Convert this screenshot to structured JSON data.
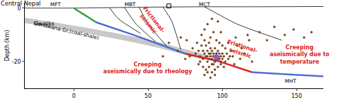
{
  "chart_data": {
    "type": "scatter",
    "title": "Central Nepal",
    "y_label": "Depth (km)",
    "xlim": [
      -33,
      168
    ],
    "ylim": [
      -30,
      2
    ],
    "xticks": [
      0,
      50,
      100,
      150
    ],
    "yticks": [
      0,
      -20
    ],
    "grid": false,
    "series": [
      {
        "type": "line",
        "line_style": "band",
        "color": "#c8c8c8",
        "x": [
          -33,
          0,
          30,
          60,
          88
        ],
        "values": [
          -4.6,
          -7.6,
          -10.6,
          -14.2,
          -18.4
        ]
      },
      {
        "type": "line",
        "line_style": "thin",
        "color": "#000000",
        "x": [
          -33,
          0,
          30,
          60,
          90,
          120,
          168
        ],
        "values": [
          0,
          0,
          0.2,
          0.4,
          0.5,
          0.5,
          0.6
        ]
      },
      {
        "type": "line",
        "line_style": "thin",
        "color": "#000000",
        "x": [
          24,
          30,
          45
        ],
        "values": [
          0.2,
          -4,
          -9.5
        ]
      },
      {
        "type": "line",
        "line_style": "thin",
        "color": "#000000",
        "x": [
          34,
          42,
          55
        ],
        "values": [
          0.3,
          -6,
          -12.5
        ]
      },
      {
        "type": "line",
        "line_style": "thin",
        "color": "#000000",
        "x": [
          44,
          50,
          63
        ],
        "values": [
          0.3,
          -6,
          -14.5
        ]
      },
      {
        "type": "line",
        "line_style": "thin",
        "color": "#000000",
        "x": [
          88,
          110,
          140
        ],
        "values": [
          0.5,
          -6,
          -12
        ]
      },
      {
        "type": "line",
        "line_style": "thin",
        "color": "#000000",
        "x": [
          60,
          66,
          72
        ],
        "values": [
          0.4,
          -5,
          -15.5
        ]
      },
      {
        "type": "line",
        "line_style": "thick",
        "color": "#2e9e3e",
        "x": [
          0,
          5,
          10,
          15
        ],
        "values": [
          0,
          -1.8,
          -3.5,
          -5.3
        ]
      },
      {
        "type": "line",
        "line_style": "thick",
        "color": "#4a6fd0",
        "x": [
          15,
          40,
          60,
          75
        ],
        "values": [
          -5.3,
          -10,
          -14,
          -17
        ]
      },
      {
        "type": "line",
        "line_style": "thick",
        "color": "#e02020",
        "x": [
          75,
          97
        ],
        "values": [
          -17,
          -19.8
        ]
      },
      {
        "type": "line",
        "line_style": "thick",
        "color": "#e02020",
        "x": [
          97,
          120
        ],
        "values": [
          -19.8,
          -24
        ]
      },
      {
        "type": "line",
        "line_style": "thick",
        "color": "#4a6fd0",
        "x": [
          120,
          145,
          168
        ],
        "values": [
          -24,
          -24.8,
          -25.5
        ]
      },
      {
        "type": "scatter",
        "marker": "circle",
        "color": "#8b4513",
        "x": [
          82,
          84,
          85,
          86,
          87,
          88,
          88,
          89,
          90,
          90,
          91,
          91,
          92,
          92,
          93,
          93,
          94,
          94,
          95,
          95,
          95,
          96,
          96,
          97,
          97,
          98,
          98,
          99,
          99,
          100,
          100,
          101,
          102,
          103,
          104,
          105,
          86,
          88,
          90,
          92,
          94,
          96,
          98,
          100,
          84,
          87,
          89,
          91,
          93,
          95,
          97,
          99,
          101,
          83,
          85,
          80,
          78,
          76,
          106,
          108,
          110,
          112,
          115,
          118,
          120,
          95,
          92,
          90,
          88,
          93,
          97,
          99,
          87,
          89,
          91,
          93,
          102,
          104,
          107,
          109,
          113,
          117,
          75,
          72,
          70,
          64,
          60,
          125,
          130,
          135,
          142,
          148,
          155,
          160,
          96,
          94,
          92,
          90
        ],
        "values": [
          -17,
          -16,
          -18,
          -14,
          -19,
          -17,
          -12,
          -18,
          -16,
          -20,
          -17,
          -13,
          -18,
          -15,
          -19,
          -16,
          -17,
          -21,
          -18,
          -15,
          -20,
          -17,
          -19,
          -18,
          -16,
          -19,
          -17,
          -18,
          -20,
          -17,
          -19,
          -18,
          -20,
          -17,
          -19,
          -18,
          -10,
          -8,
          -6,
          -11,
          -9,
          -12,
          -13,
          -14,
          -21,
          -22,
          -23,
          -22,
          -24,
          -23,
          -22,
          -21,
          -22,
          -13,
          -20,
          -15,
          -18,
          -12,
          -16,
          -21,
          -14,
          -19,
          -17,
          -12,
          -20,
          -25,
          -26,
          -24,
          -25,
          -4,
          -5,
          -9,
          -16,
          -14,
          -19,
          -21,
          -15,
          -13,
          -18,
          -11,
          -15,
          -10,
          -19,
          -11,
          -16,
          -13,
          -18,
          -9,
          -12,
          -7,
          -10,
          -8,
          -11,
          -9,
          -17,
          -18,
          -17,
          -18
        ]
      },
      {
        "type": "scatter",
        "marker": "star",
        "color": "#9b59b6",
        "x": [
          96
        ],
        "values": [
          -18.5
        ]
      },
      {
        "type": "scatter",
        "marker": "square-open",
        "color": "#000000",
        "x": [
          64
        ],
        "values": [
          0.8
        ]
      }
    ],
    "annotations": [
      {
        "lines": [
          "MFT"
        ],
        "x": -12,
        "y": 1.3,
        "color": "#000000"
      },
      {
        "lines": [
          "MBT"
        ],
        "x": 38,
        "y": 1.3,
        "color": "#000000"
      },
      {
        "lines": [
          "MCT"
        ],
        "x": 88,
        "y": 1.3,
        "color": "#000000"
      },
      {
        "lines": [
          "Siwaliks"
        ],
        "x": -20,
        "y": -5.8,
        "color": "#000000"
      },
      {
        "lines": [
          "Gondwana Gr.(coal-shale)"
        ],
        "x": -5,
        "y": -8.4,
        "color": "#000000"
      },
      {
        "lines": [
          "Frictional-",
          "seismic"
        ],
        "x": 52,
        "y": -5,
        "color": "#e02020"
      },
      {
        "lines": [
          "Creeping",
          "aseismically due to rheology"
        ],
        "x": 50,
        "y": -22.5,
        "color": "#e02020"
      },
      {
        "lines": [
          "Frictional-",
          "seismic"
        ],
        "x": 113,
        "y": -15.5,
        "color": "#e02020"
      },
      {
        "lines": [
          "Creeping",
          "aseismically due to",
          "temperature"
        ],
        "x": 152,
        "y": -17.5,
        "color": "#e02020"
      },
      {
        "lines": [
          "MHT"
        ],
        "x": 146,
        "y": -27.2,
        "color": "#000000"
      }
    ]
  }
}
